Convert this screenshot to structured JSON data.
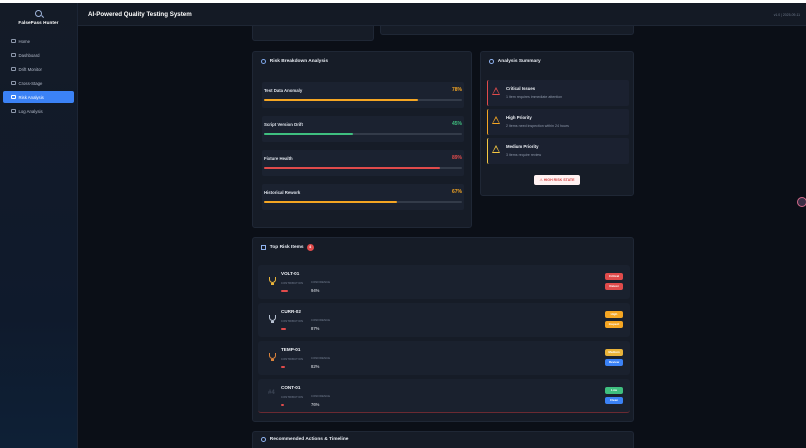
{
  "brand": {
    "name": "FalsePass Hunter",
    "logo_icon": "search-icon"
  },
  "sidebar": {
    "items": [
      {
        "label": "Home",
        "icon": "home-icon",
        "active": false
      },
      {
        "label": "Dashboard",
        "icon": "dashboard-icon",
        "active": false
      },
      {
        "label": "Drift Monitor",
        "icon": "drift-icon",
        "active": false
      },
      {
        "label": "Cross-Stage",
        "icon": "link-icon",
        "active": false
      },
      {
        "label": "Risk Analysis",
        "icon": "monitor-icon",
        "active": true
      },
      {
        "label": "Log Analysis",
        "icon": "file-icon",
        "active": false
      }
    ]
  },
  "header": {
    "title": "AI-Powered Quality Testing System",
    "version": "v1.0 | 2025-09-11"
  },
  "risk_breakdown": {
    "title": "Risk Breakdown Analysis",
    "items": [
      {
        "label": "Test Data Anomaly",
        "value": 78,
        "display": "78%",
        "color": "#f5a623"
      },
      {
        "label": "Script Version Drift",
        "value": 45,
        "display": "45%",
        "color": "#3fbf7f"
      },
      {
        "label": "Fixture Health",
        "value": 89,
        "display": "89%",
        "color": "#e04b4b"
      },
      {
        "label": "Historical Rework",
        "value": 67,
        "display": "67%",
        "color": "#f5a623"
      }
    ]
  },
  "analysis_summary": {
    "title": "Analysis Summary",
    "items": [
      {
        "title": "Critical Issues",
        "desc": "1 item requires immediate attention",
        "color": "#e04b4b"
      },
      {
        "title": "High Priority",
        "desc": "2 items need inspection within 24 hours",
        "color": "#f5a623"
      },
      {
        "title": "Medium Priority",
        "desc": "3 items require review",
        "color": "#f5c842"
      }
    ],
    "state_button": "⚠ HIGH RISK STATE"
  },
  "top_risk": {
    "title": "Top Risk Items",
    "count": "4",
    "contribution_label": "CONTRIBUTION",
    "confidence_label": "CONFIDENCE",
    "items": [
      {
        "code": "VOLT-01",
        "confidence": "94%",
        "contribution": 0.85,
        "severity": "Critical",
        "status": "Retest",
        "sev_color": "#e04b4b",
        "status_color": "#e04b4b",
        "trophy_color": "#e8b33a"
      },
      {
        "code": "CURR-02",
        "confidence": "87%",
        "contribution": 0.6,
        "severity": "High",
        "status": "Inspect",
        "sev_color": "#f5a623",
        "status_color": "#f5a623",
        "trophy_color": "#b8c2d2"
      },
      {
        "code": "TEMP-01",
        "confidence": "82%",
        "contribution": 0.45,
        "severity": "Medium",
        "status": "Review",
        "sev_color": "#e8b33a",
        "status_color": "#3b82f6",
        "trophy_color": "#d9823b"
      },
      {
        "code": "CONT-01",
        "rank": "#4",
        "confidence": "76%",
        "contribution": 0.4,
        "severity": "Low",
        "status": "Clean",
        "sev_color": "#3fbf7f",
        "status_color": "#3b82f6",
        "trophy_color": ""
      }
    ]
  },
  "recommended": {
    "title": "Recommended Actions & Timeline"
  }
}
